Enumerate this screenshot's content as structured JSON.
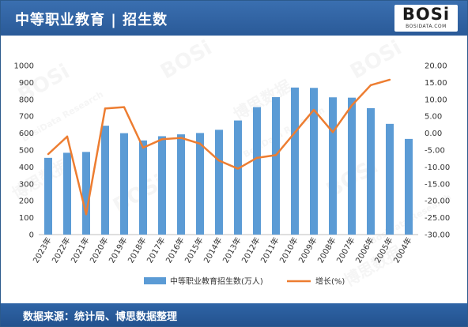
{
  "header": {
    "title": "中等职业教育 | 招生数"
  },
  "logo": {
    "text": "BOSi",
    "sub": "BOSIDATA.COM"
  },
  "footer": {
    "source": "数据来源：统计局、博思数据整理"
  },
  "watermark": {
    "brand": "BOSi",
    "brand_cn": "博思数据",
    "sub": "BosiData Research"
  },
  "colors": {
    "bar": "#5b9bd5",
    "line": "#ed7d31",
    "header": "#2c5a8c"
  },
  "chart_data": {
    "type": "bar",
    "categories": [
      "2023年",
      "2022年",
      "2021年",
      "2020年",
      "2019年",
      "2018年",
      "2017年",
      "2016年",
      "2015年",
      "2014年",
      "2013年",
      "2012年",
      "2011年",
      "2010年",
      "2009年",
      "2008年",
      "2007年",
      "2006年",
      "2005年",
      "2004年"
    ],
    "series": [
      {
        "name": "中等职业教育招生数(万人)",
        "type": "bar",
        "axis": "left",
        "values": [
          454,
          484,
          489,
          644,
          600,
          557,
          582,
          593,
          601,
          620,
          675,
          754,
          813,
          870,
          868,
          812,
          810,
          748,
          655,
          566
        ]
      },
      {
        "name": "增长(%)",
        "type": "line",
        "axis": "right",
        "values": [
          -6.2,
          -1.0,
          -24.0,
          7.3,
          7.7,
          -4.3,
          -1.8,
          -1.4,
          -3.1,
          -8.1,
          -10.5,
          -7.3,
          -6.5,
          0.2,
          6.9,
          0.3,
          8.2,
          14.2,
          15.8,
          null
        ]
      }
    ],
    "y_left": {
      "min": 0,
      "max": 1000,
      "step": 100,
      "ticks": [
        "0",
        "100",
        "200",
        "300",
        "400",
        "500",
        "600",
        "700",
        "800",
        "900",
        "1000"
      ]
    },
    "y_right": {
      "min": -30,
      "max": 20,
      "step": 5,
      "ticks": [
        "-30.00",
        "-25.00",
        "-20.00",
        "-15.00",
        "-10.00",
        "-5.00",
        "0.00",
        "5.00",
        "10.00",
        "15.00",
        "20.00"
      ]
    },
    "legend": {
      "position": "bottom"
    },
    "grid": false
  }
}
